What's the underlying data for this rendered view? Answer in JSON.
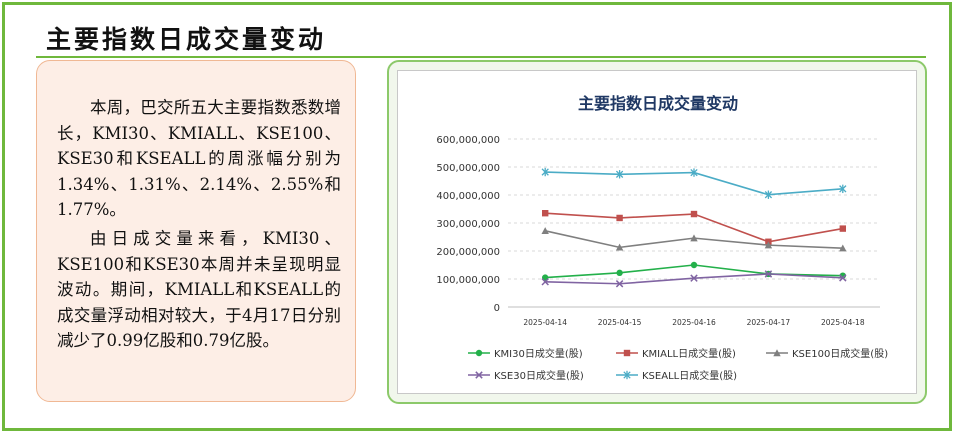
{
  "page": {
    "title": "主要指数日成交量变动",
    "paragraphs": [
      "本周，巴交所五大主要指数悉数增长，KMI30、KMIALL、KSE100、KSE30和KSEALL的周涨幅分别为1.34%、1.31%、2.14%、2.55%和1.77%。",
      "由日成交量来看，KMI30、KSE100和KSE30本周并未呈现明显波动。期间，KMIALL和KSEALL的成交量浮动相对较大，于4月17日分别减少了0.99亿股和0.79亿股。"
    ]
  },
  "chart_data": {
    "type": "line",
    "title": "主要指数日成交量变动",
    "x": [
      "2025-04-14",
      "2025-04-15",
      "2025-04-16",
      "2025-04-17",
      "2025-04-18"
    ],
    "ylim": [
      0,
      600000000
    ],
    "yticks": [
      0,
      100000000,
      200000000,
      300000000,
      400000000,
      500000000,
      600000000
    ],
    "ytick_labels": [
      "0",
      "100,000,000",
      "200,000,000",
      "300,000,000",
      "400,000,000",
      "500,000,000",
      "600,000,000"
    ],
    "grid": "horizontal-dashed",
    "legend": "bottom",
    "series": [
      {
        "name": "KMI30日成交量(股)",
        "color": "#23b04a",
        "marker": "circle",
        "values": [
          105000000,
          122000000,
          150000000,
          118000000,
          112000000
        ]
      },
      {
        "name": "KMIALL日成交量(股)",
        "color": "#c0504d",
        "marker": "square",
        "values": [
          335000000,
          318000000,
          332000000,
          233000000,
          280000000
        ]
      },
      {
        "name": "KSE100日成交量(股)",
        "color": "#7f7f7f",
        "marker": "triangle",
        "values": [
          272000000,
          213000000,
          246000000,
          221000000,
          210000000
        ]
      },
      {
        "name": "KSE30日成交量(股)",
        "color": "#8064a2",
        "marker": "x",
        "values": [
          90000000,
          83000000,
          103000000,
          118000000,
          104000000
        ]
      },
      {
        "name": "KSEALL日成交量(股)",
        "color": "#4bacc6",
        "marker": "star",
        "values": [
          482000000,
          474000000,
          480000000,
          401000000,
          422000000
        ]
      }
    ]
  }
}
